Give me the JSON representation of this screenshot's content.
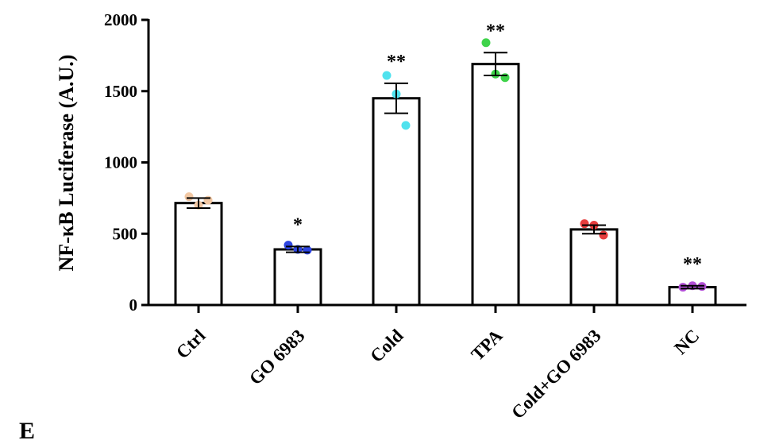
{
  "panel_letter": "E",
  "chart_data": {
    "type": "bar",
    "ylabel": "NF-κB Luciferase (A.U.)",
    "xlabel": "",
    "ylim": [
      0,
      2000
    ],
    "yticks": [
      "0",
      "500",
      "1000",
      "1500",
      "2000"
    ],
    "categories": [
      "Ctrl",
      "GO 6983",
      "Cold",
      "TPA",
      "Cold+GO 6983",
      "NC"
    ],
    "values": [
      715,
      390,
      1450,
      1690,
      530,
      125
    ],
    "error": [
      35,
      20,
      105,
      80,
      30,
      10
    ],
    "significance": [
      "",
      "*",
      "**",
      "**",
      "",
      "**"
    ],
    "points": [
      [
        760,
        700,
        735
      ],
      [
        420,
        390,
        385
      ],
      [
        1610,
        1480,
        1260
      ],
      [
        1840,
        1620,
        1595
      ],
      [
        570,
        560,
        490
      ],
      [
        125,
        135,
        130
      ]
    ],
    "point_colors": [
      "#f2c8a4",
      "#2e45e0",
      "#4fe2ee",
      "#3fd34a",
      "#e63e3e",
      "#b24fd6"
    ],
    "bar_fill": "#ffffff",
    "bar_stroke": "#000000",
    "grid": false,
    "legend": "none"
  }
}
